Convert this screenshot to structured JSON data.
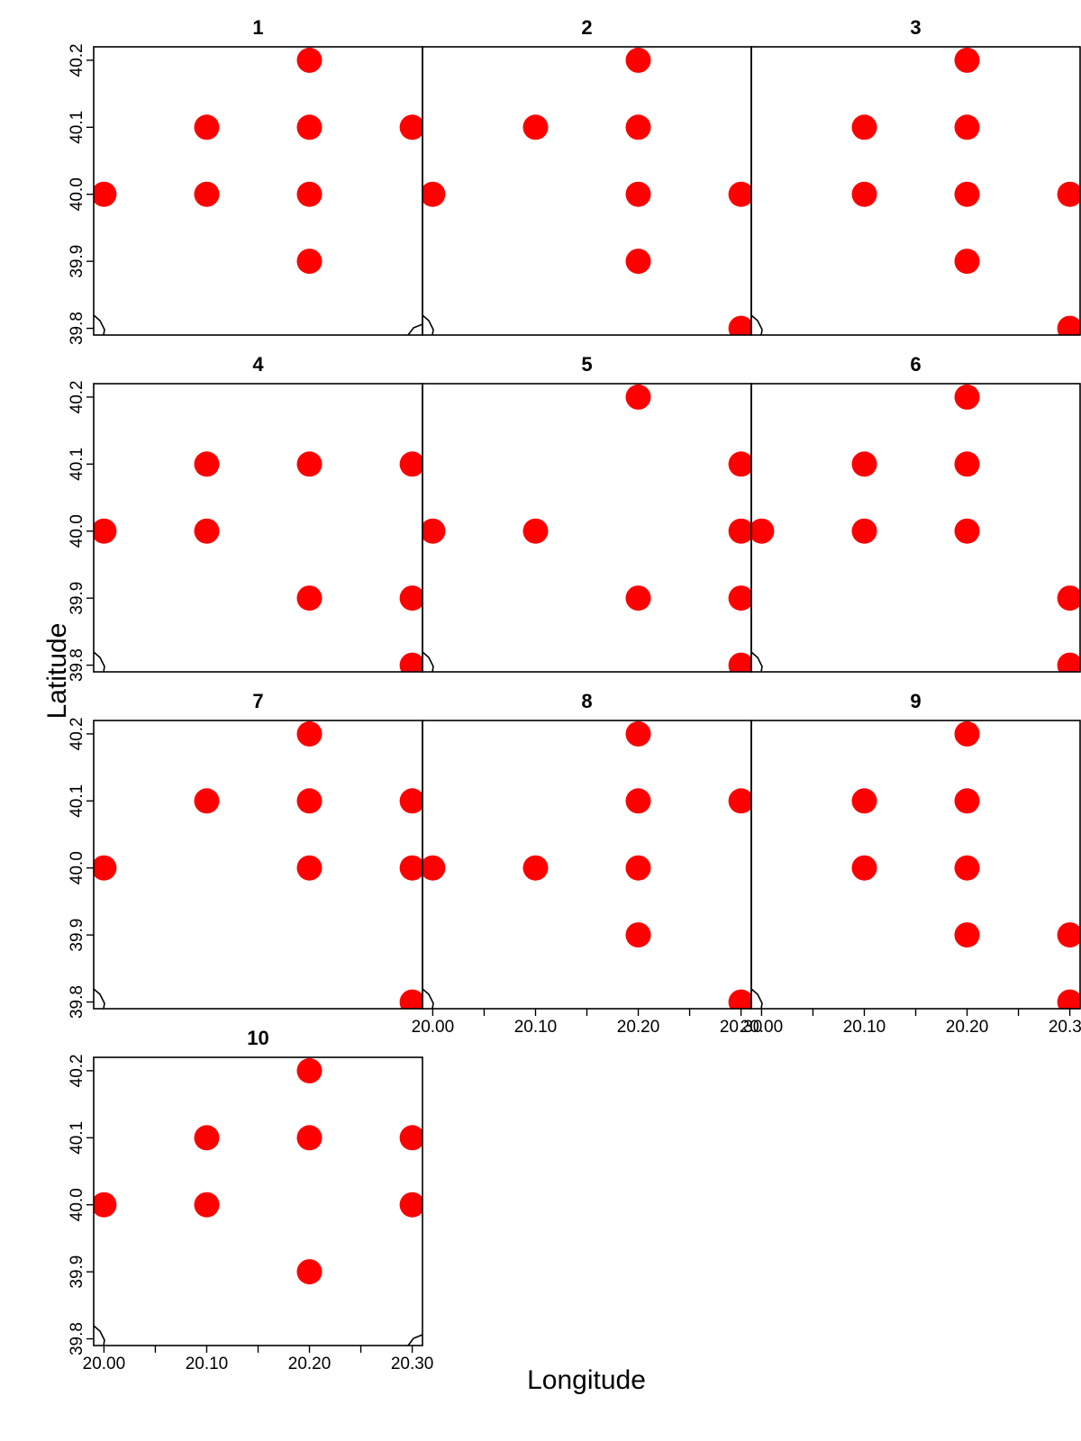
{
  "chart_data": {
    "type": "scatter",
    "xlabel": "Longitude",
    "ylabel": "Latitude",
    "xlim": [
      19.99,
      20.31
    ],
    "ylim": [
      39.79,
      40.22
    ],
    "x_ticks": [
      "20.00",
      "20.10",
      "20.20",
      "20.30"
    ],
    "y_ticks": [
      "39.8",
      "39.9",
      "40.0",
      "40.1",
      "40.2"
    ],
    "point_color": "#ff0000",
    "panels": [
      {
        "title": "1",
        "points": [
          [
            20.0,
            40.0
          ],
          [
            20.1,
            40.1
          ],
          [
            20.1,
            40.0
          ],
          [
            20.2,
            40.2
          ],
          [
            20.2,
            40.1
          ],
          [
            20.2,
            40.0
          ],
          [
            20.2,
            39.9
          ],
          [
            20.3,
            40.1
          ]
        ]
      },
      {
        "title": "2",
        "points": [
          [
            20.0,
            40.0
          ],
          [
            20.1,
            40.1
          ],
          [
            20.2,
            40.2
          ],
          [
            20.2,
            40.1
          ],
          [
            20.2,
            40.0
          ],
          [
            20.2,
            39.9
          ],
          [
            20.3,
            40.0
          ],
          [
            20.3,
            39.8
          ]
        ]
      },
      {
        "title": "3",
        "points": [
          [
            20.1,
            40.1
          ],
          [
            20.1,
            40.0
          ],
          [
            20.2,
            40.2
          ],
          [
            20.2,
            40.1
          ],
          [
            20.2,
            40.0
          ],
          [
            20.2,
            39.9
          ],
          [
            20.3,
            40.0
          ],
          [
            20.3,
            39.8
          ]
        ]
      },
      {
        "title": "4",
        "points": [
          [
            20.0,
            40.0
          ],
          [
            20.1,
            40.1
          ],
          [
            20.1,
            40.0
          ],
          [
            20.2,
            40.1
          ],
          [
            20.2,
            39.9
          ],
          [
            20.3,
            40.1
          ],
          [
            20.3,
            39.9
          ],
          [
            20.3,
            39.8
          ]
        ]
      },
      {
        "title": "5",
        "points": [
          [
            20.0,
            40.0
          ],
          [
            20.1,
            40.0
          ],
          [
            20.2,
            40.2
          ],
          [
            20.2,
            39.9
          ],
          [
            20.3,
            40.1
          ],
          [
            20.3,
            40.0
          ],
          [
            20.3,
            39.9
          ],
          [
            20.3,
            39.8
          ]
        ]
      },
      {
        "title": "6",
        "points": [
          [
            20.0,
            40.0
          ],
          [
            20.1,
            40.1
          ],
          [
            20.1,
            40.0
          ],
          [
            20.2,
            40.2
          ],
          [
            20.2,
            40.1
          ],
          [
            20.2,
            40.0
          ],
          [
            20.3,
            39.9
          ],
          [
            20.3,
            39.8
          ]
        ]
      },
      {
        "title": "7",
        "points": [
          [
            20.0,
            40.0
          ],
          [
            20.1,
            40.1
          ],
          [
            20.2,
            40.2
          ],
          [
            20.2,
            40.1
          ],
          [
            20.2,
            40.0
          ],
          [
            20.3,
            40.1
          ],
          [
            20.3,
            40.0
          ],
          [
            20.3,
            39.8
          ]
        ]
      },
      {
        "title": "8",
        "points": [
          [
            20.0,
            40.0
          ],
          [
            20.1,
            40.0
          ],
          [
            20.2,
            40.2
          ],
          [
            20.2,
            40.1
          ],
          [
            20.2,
            40.0
          ],
          [
            20.2,
            39.9
          ],
          [
            20.3,
            40.1
          ],
          [
            20.3,
            39.8
          ]
        ]
      },
      {
        "title": "9",
        "points": [
          [
            20.1,
            40.1
          ],
          [
            20.1,
            40.0
          ],
          [
            20.2,
            40.2
          ],
          [
            20.2,
            40.1
          ],
          [
            20.2,
            40.0
          ],
          [
            20.2,
            39.9
          ],
          [
            20.3,
            39.9
          ],
          [
            20.3,
            39.8
          ]
        ]
      },
      {
        "title": "10",
        "points": [
          [
            20.0,
            40.0
          ],
          [
            20.1,
            40.1
          ],
          [
            20.1,
            40.0
          ],
          [
            20.2,
            40.2
          ],
          [
            20.2,
            40.1
          ],
          [
            20.2,
            39.9
          ],
          [
            20.3,
            40.1
          ],
          [
            20.3,
            40.0
          ]
        ]
      }
    ]
  }
}
